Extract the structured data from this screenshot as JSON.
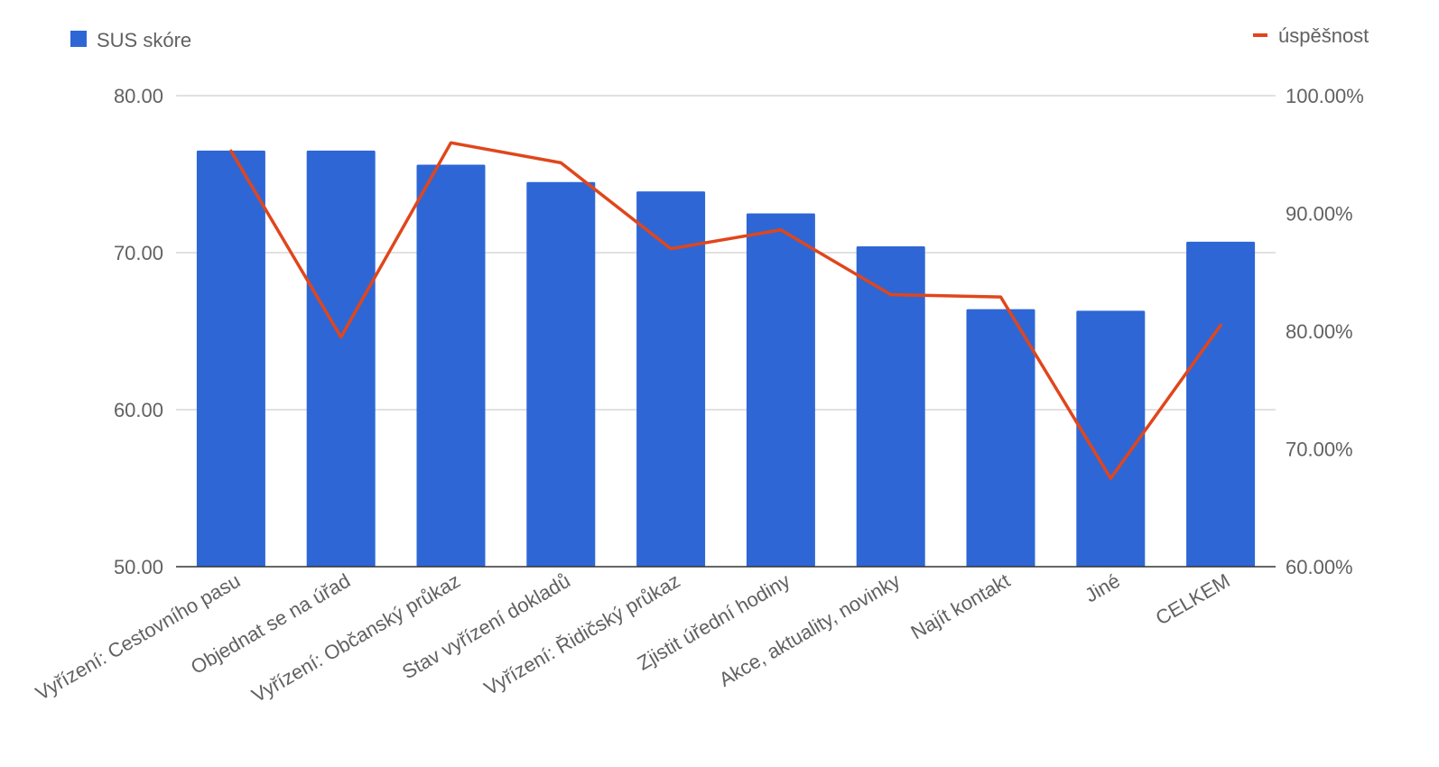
{
  "chart_data": {
    "type": "bar",
    "categories": [
      "Vyřízení: Cestovního pasu",
      "Objednat se na úřad",
      "Vyřízení: Občanský průkaz",
      "Stav vyřízení dokladů",
      "Vyřízení: Řidičský průkaz",
      "Zjistit úřední hodiny",
      "Akce, aktuality, novinky",
      "Najít kontakt",
      "Jiné",
      "CELKEM"
    ],
    "series": [
      {
        "name": "SUS skóre",
        "type": "bar",
        "axis": "left",
        "color": "#2e67d5",
        "values": [
          76.5,
          76.5,
          75.6,
          74.5,
          73.9,
          72.5,
          70.4,
          66.4,
          66.3,
          70.7
        ]
      },
      {
        "name": "úspěšnost",
        "type": "line",
        "axis": "right",
        "color": "#e0461c",
        "values": [
          95.3,
          79.5,
          96.0,
          94.3,
          87.0,
          88.6,
          83.1,
          82.9,
          67.5,
          80.5
        ]
      }
    ],
    "y_left": {
      "ylim": [
        50,
        80
      ],
      "ticks": [
        50,
        60,
        70,
        80
      ],
      "tick_labels": [
        "50.00",
        "60.00",
        "70.00",
        "80.00"
      ]
    },
    "y_right": {
      "ylim": [
        60,
        100
      ],
      "ticks": [
        60,
        70,
        80,
        90,
        100
      ],
      "tick_labels": [
        "60.00%",
        "70.00%",
        "80.00%",
        "90.00%",
        "100.00%"
      ]
    },
    "grid": true,
    "legend_placement": "top",
    "title": "",
    "xlabel": "",
    "ylabel": ""
  }
}
